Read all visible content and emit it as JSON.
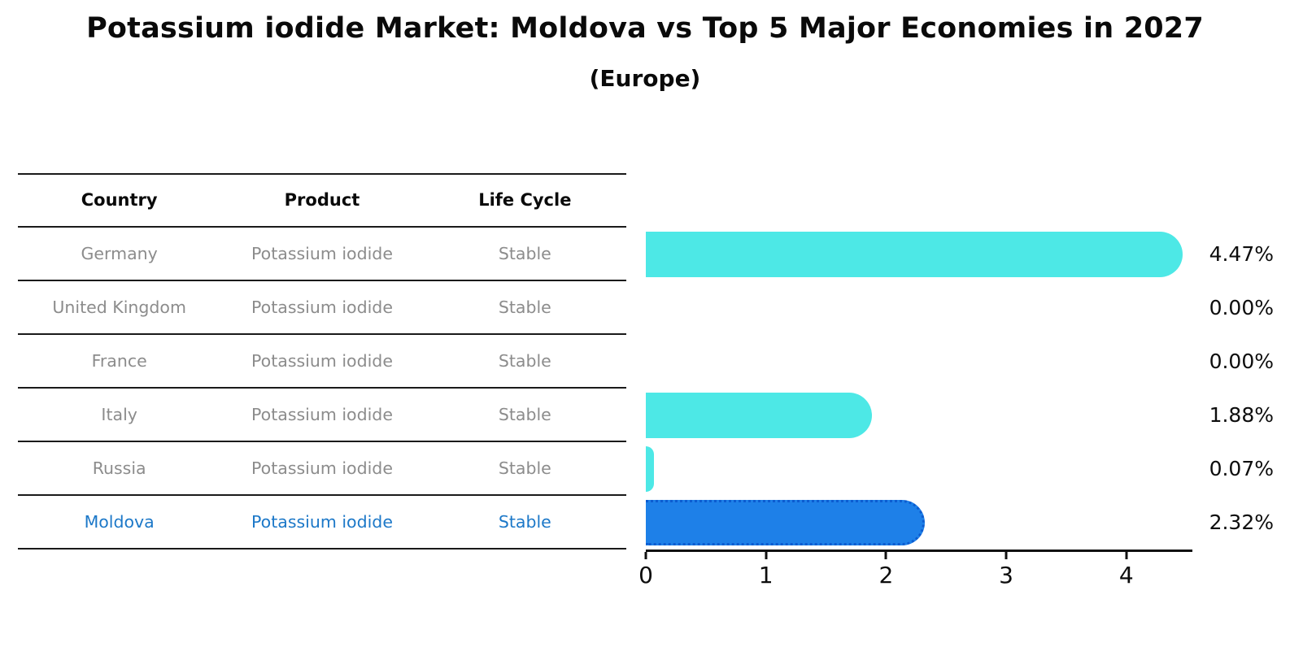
{
  "title": "Potassium iodide Market: Moldova vs Top 5 Major Economies in 2027",
  "subtitle": "(Europe)",
  "table": {
    "headers": [
      "Country",
      "Product",
      "Life Cycle"
    ],
    "rows": [
      {
        "country": "Germany",
        "product": "Potassium iodide",
        "life_cycle": "Stable"
      },
      {
        "country": "United Kingdom",
        "product": "Potassium iodide",
        "life_cycle": "Stable"
      },
      {
        "country": "France",
        "product": "Potassium iodide",
        "life_cycle": "Stable"
      },
      {
        "country": "Italy",
        "product": "Potassium iodide",
        "life_cycle": "Stable"
      },
      {
        "country": "Russia",
        "product": "Potassium iodide",
        "life_cycle": "Stable"
      },
      {
        "country": "Moldova",
        "product": "Potassium iodide",
        "life_cycle": "Stable"
      }
    ]
  },
  "chart_data": {
    "type": "bar",
    "orientation": "horizontal",
    "title": "Potassium iodide Market: Moldova vs Top 5 Major Economies in 2027 (Europe)",
    "categories": [
      "Germany",
      "United Kingdom",
      "France",
      "Italy",
      "Russia",
      "Moldova"
    ],
    "values": [
      4.47,
      0.0,
      0.0,
      1.88,
      0.07,
      2.32
    ],
    "labels": [
      "4.47%",
      "0.00%",
      "0.00%",
      "1.88%",
      "0.07%",
      "2.32%"
    ],
    "xticks": [
      0,
      1,
      2,
      3,
      4
    ],
    "xlim": [
      0,
      4.55
    ],
    "grid": false,
    "legend": false,
    "bar_color": "#4de8e6",
    "highlight_color": "#1e80e8",
    "highlight_index": 5
  },
  "colors": {
    "highlight_text": "#1c78c8",
    "row_text": "#8c8c8c",
    "table_line": "#1a1a1a"
  }
}
